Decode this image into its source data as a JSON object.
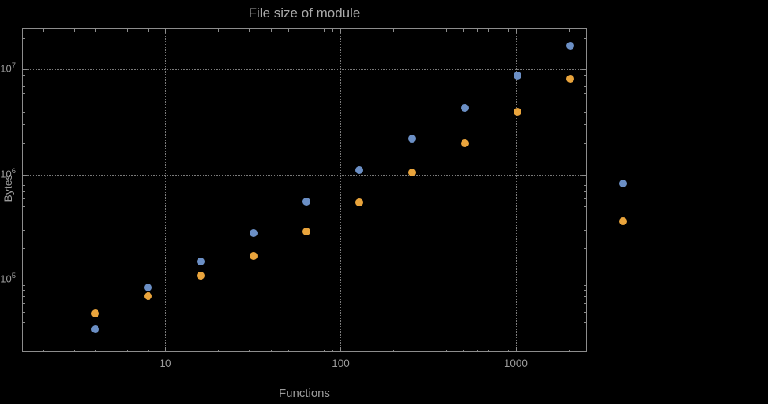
{
  "chart": {
    "title": "File size of module",
    "xlabel": "Functions",
    "ylabel": "Bytes"
  },
  "colors": {
    "background": "#000000",
    "frame": "#8c8c8c",
    "grid": "#7a7a7a",
    "text": "#9b9b9b",
    "title_text": "#a9a9a9"
  },
  "chart_data": {
    "type": "scatter",
    "title": "File size of module",
    "xlabel": "Functions",
    "ylabel": "Bytes",
    "x_scale": "log10",
    "y_scale": "log10",
    "xlim": [
      1.52,
      2540
    ],
    "ylim": [
      20600,
      24700000
    ],
    "grid": "dotted lines at powers of 10, both axes",
    "legend": "none",
    "x": [
      4,
      8,
      16,
      32,
      64,
      128,
      256,
      512,
      1024,
      2048,
      4096
    ],
    "series": [
      {
        "name": "blue-series",
        "color": "#6b8fc5",
        "values": [
          34000,
          85000,
          150000,
          280000,
          560000,
          1100000,
          2200000,
          4300000,
          8800000,
          17000000,
          820000
        ]
      },
      {
        "name": "orange-series",
        "color": "#e9a43c",
        "values": [
          48000,
          70000,
          110000,
          170000,
          290000,
          550000,
          1050000,
          2000000,
          4000000,
          8200000,
          360000
        ]
      }
    ],
    "x_ticks": [
      {
        "value": 10,
        "label": "10"
      },
      {
        "value": 100,
        "label": "100"
      },
      {
        "value": 1000,
        "label": "1000"
      }
    ],
    "y_ticks": [
      {
        "value": 100000,
        "mantissa": "10",
        "exponent": "5"
      },
      {
        "value": 1000000,
        "mantissa": "10",
        "exponent": "6"
      },
      {
        "value": 10000000,
        "mantissa": "10",
        "exponent": "7"
      }
    ]
  }
}
